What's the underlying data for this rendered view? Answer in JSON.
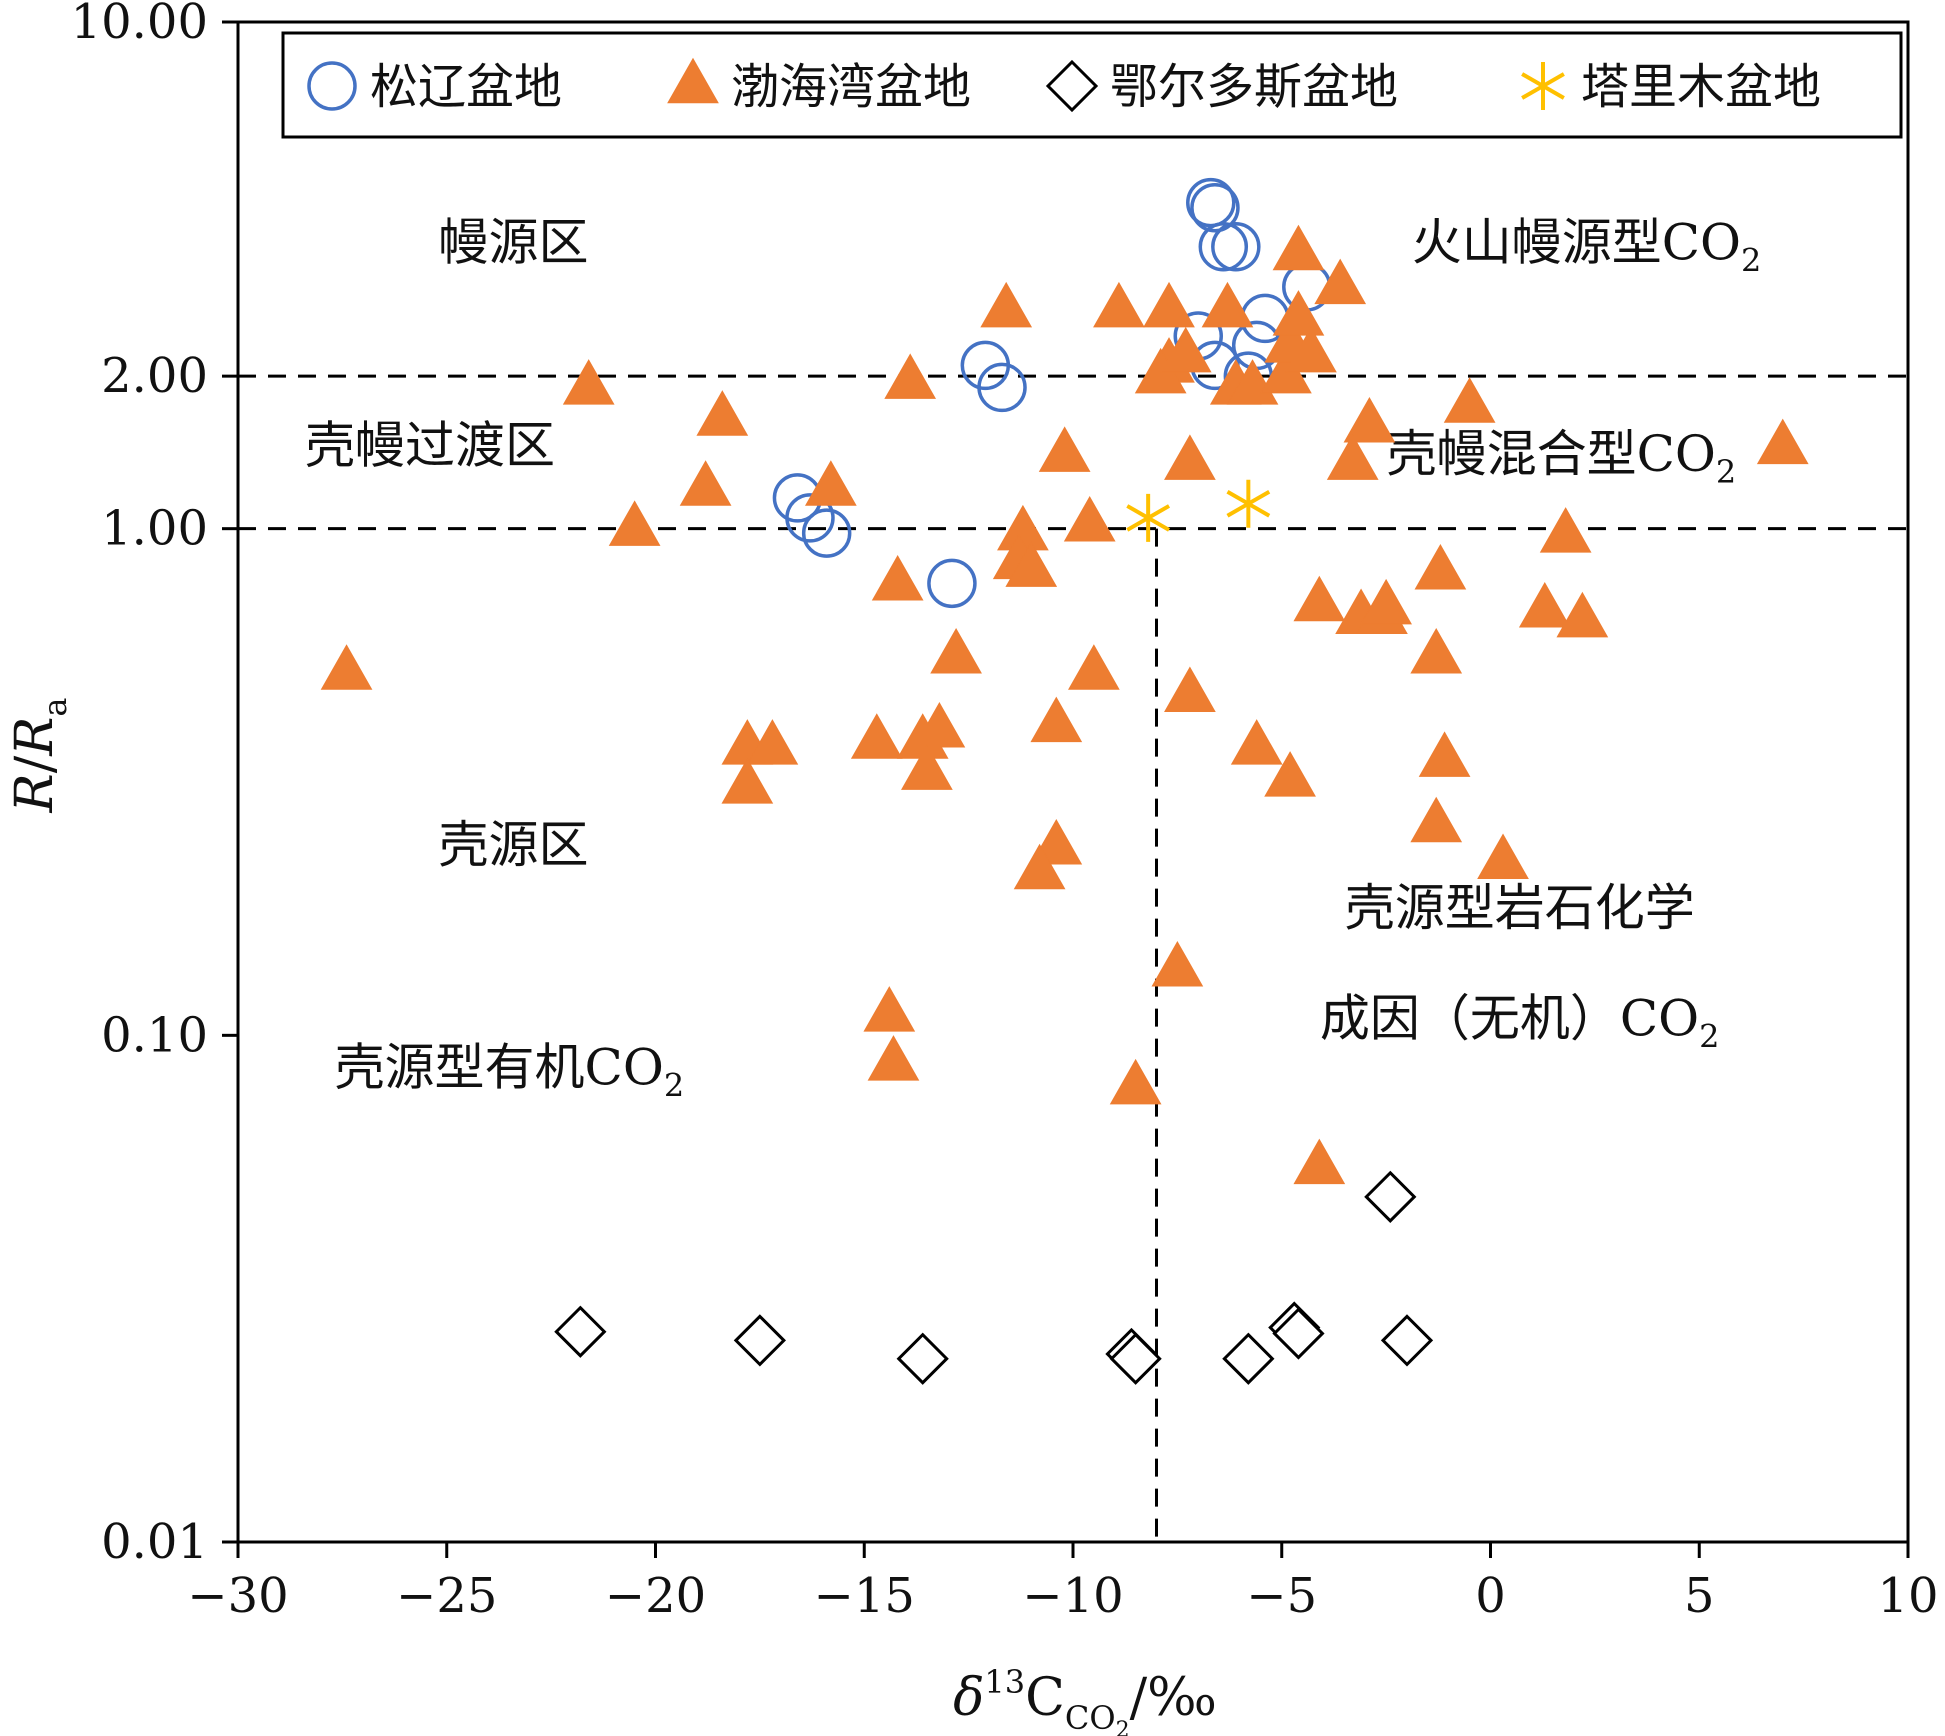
{
  "chart_data": {
    "type": "scatter",
    "x_axis": {
      "min": -30,
      "max": 10,
      "ticks": [
        -30,
        -25,
        -20,
        -15,
        -10,
        -5,
        0,
        5,
        10
      ],
      "tick_labels": [
        "−30",
        "−25",
        "−20",
        "−15",
        "−10",
        "−5",
        "0",
        "5",
        "10"
      ],
      "label_main": "δ",
      "label_sup": "13",
      "label_c": "C",
      "label_sub": "CO",
      "label_sub2": "2",
      "label_unit": "/‰"
    },
    "y_axis": {
      "scale": "log",
      "min": 0.01,
      "max": 10,
      "ticks": [
        0.01,
        0.1,
        1,
        2,
        10
      ],
      "tick_labels": [
        "0.01",
        "0.10",
        "1.00",
        "2.00",
        "10.00"
      ],
      "label_main": "R",
      "label_sep": "/",
      "label_r": "R",
      "label_sub": "a"
    },
    "reference_lines": [
      {
        "orientation": "horizontal",
        "y": 2,
        "style": "dashed"
      },
      {
        "orientation": "horizontal",
        "y": 1,
        "style": "dashed"
      },
      {
        "orientation": "vertical",
        "x": -8,
        "y_from": 0.01,
        "y_to": 1,
        "style": "dashed"
      }
    ],
    "regions": [
      {
        "label": "幔源区",
        "x": -23.4,
        "y": 3.4
      },
      {
        "label": "火山幔源型CO",
        "sub": "2",
        "x": 2.3,
        "y": 3.4
      },
      {
        "label": "壳幔过渡区",
        "x": -25.4,
        "y": 1.35
      },
      {
        "label": "壳幔混合型CO",
        "sub": "2",
        "x": 1.7,
        "y": 1.3
      },
      {
        "label": "壳源区",
        "x": -23.4,
        "y": 0.22
      },
      {
        "label": "壳源型岩石化学",
        "x": 0.7,
        "y": 0.165
      },
      {
        "label": "成因（无机）CO",
        "sub": "2",
        "x": 0.7,
        "y": 0.1
      },
      {
        "label": "壳源型有机CO",
        "sub": "2",
        "x": -23.5,
        "y": 0.08
      }
    ],
    "legend": {
      "position": "top",
      "entries": [
        "松辽盆地",
        "渤海湾盆地",
        "鄂尔多斯盆地",
        "塔里木盆地"
      ]
    },
    "series": [
      {
        "name": "松辽盆地",
        "marker": "circle",
        "color": "#4472C4",
        "points": [
          [
            -6.7,
            4.4
          ],
          [
            -6.6,
            4.3
          ],
          [
            -6.4,
            3.6
          ],
          [
            -6.1,
            3.6
          ],
          [
            -4.4,
            3.0
          ],
          [
            -5.4,
            2.6
          ],
          [
            -5.6,
            2.3
          ],
          [
            -7.0,
            2.4
          ],
          [
            -6.6,
            2.1
          ],
          [
            -5.8,
            2.0
          ],
          [
            -12.1,
            2.1
          ],
          [
            -11.7,
            1.9
          ],
          [
            -16.6,
            1.15
          ],
          [
            -16.3,
            1.05
          ],
          [
            -15.9,
            0.98
          ],
          [
            -12.9,
            0.78
          ]
        ]
      },
      {
        "name": "渤海湾盆地",
        "marker": "triangle",
        "color": "#ED7D31",
        "points": [
          [
            -27.4,
            0.52
          ],
          [
            -21.6,
            1.9
          ],
          [
            -20.5,
            1.0
          ],
          [
            -18.4,
            1.65
          ],
          [
            -18.8,
            1.2
          ],
          [
            -17.8,
            0.37
          ],
          [
            -17.2,
            0.37
          ],
          [
            -17.8,
            0.31
          ],
          [
            -15.8,
            1.2
          ],
          [
            -14.7,
            0.38
          ],
          [
            -13.9,
            1.95
          ],
          [
            -14.2,
            0.78
          ],
          [
            -13.6,
            0.38
          ],
          [
            -13.2,
            0.4
          ],
          [
            -13.5,
            0.33
          ],
          [
            -12.8,
            0.56
          ],
          [
            -11.6,
            2.7
          ],
          [
            -11.2,
            0.98
          ],
          [
            -11.3,
            0.86
          ],
          [
            -11.0,
            0.83
          ],
          [
            -10.2,
            1.4
          ],
          [
            -10.4,
            0.41
          ],
          [
            -10.4,
            0.235
          ],
          [
            -10.8,
            0.21
          ],
          [
            -9.5,
            0.52
          ],
          [
            -9.6,
            1.02
          ],
          [
            -8.9,
            2.7
          ],
          [
            -7.7,
            2.7
          ],
          [
            -7.7,
            2.1
          ],
          [
            -7.9,
            2.0
          ],
          [
            -7.3,
            2.2
          ],
          [
            -7.2,
            1.35
          ],
          [
            -7.2,
            0.47
          ],
          [
            -7.5,
            0.135
          ],
          [
            -8.5,
            0.079
          ],
          [
            -6.3,
            2.7
          ],
          [
            -6.1,
            1.9
          ],
          [
            -5.7,
            1.9
          ],
          [
            -5.6,
            0.37
          ],
          [
            -4.9,
            2.0
          ],
          [
            -4.8,
            2.3
          ],
          [
            -4.8,
            0.32
          ],
          [
            -4.6,
            3.5
          ],
          [
            -4.6,
            2.6
          ],
          [
            -4.3,
            2.2
          ],
          [
            -3.6,
            3.0
          ],
          [
            -4.1,
            0.71
          ],
          [
            -2.9,
            1.6
          ],
          [
            -3.3,
            1.35
          ],
          [
            -3.1,
            0.67
          ],
          [
            -2.6,
            0.67
          ],
          [
            -2.5,
            0.7
          ],
          [
            -1.2,
            0.82
          ],
          [
            -1.3,
            0.56
          ],
          [
            -1.1,
            0.35
          ],
          [
            -1.3,
            0.26
          ],
          [
            -0.5,
            1.75
          ],
          [
            0.3,
            0.22
          ],
          [
            1.3,
            0.69
          ],
          [
            1.8,
            0.97
          ],
          [
            2.2,
            0.66
          ],
          [
            7.0,
            1.45
          ],
          [
            -4.1,
            0.055
          ],
          [
            -14.4,
            0.11
          ],
          [
            -14.3,
            0.088
          ]
        ]
      },
      {
        "name": "鄂尔多斯盆地",
        "marker": "diamond",
        "color": "#000000",
        "points": [
          [
            -21.8,
            0.026
          ],
          [
            -17.5,
            0.025
          ],
          [
            -13.6,
            0.023
          ],
          [
            -8.6,
            0.0235
          ],
          [
            -8.5,
            0.023
          ],
          [
            -5.8,
            0.023
          ],
          [
            -4.7,
            0.0265
          ],
          [
            -4.6,
            0.0258
          ],
          [
            -2.4,
            0.048
          ],
          [
            -2.0,
            0.025
          ]
        ]
      },
      {
        "name": "塔里木盆地",
        "marker": "asterisk",
        "color": "#FFC000",
        "points": [
          [
            -8.2,
            1.05
          ],
          [
            -5.8,
            1.12
          ]
        ]
      }
    ]
  }
}
